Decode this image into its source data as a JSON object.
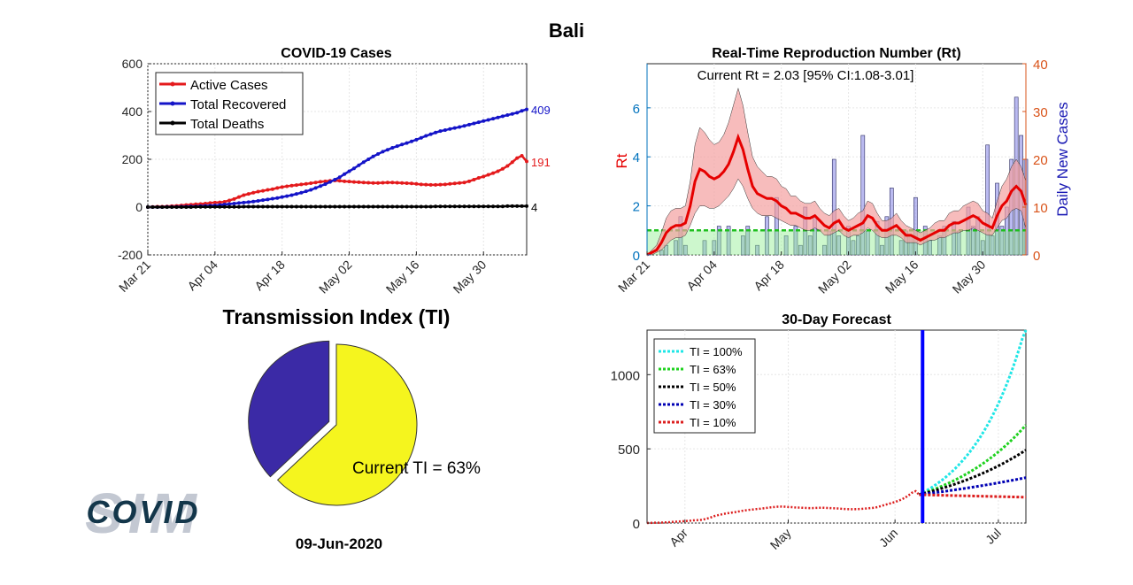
{
  "page": {
    "title": "Bali",
    "date": "09-Jun-2020",
    "logo_text": "COVID",
    "logo_watermark": "SIM"
  },
  "colors": {
    "active": "#e41a1c",
    "recovered": "#1414c8",
    "deaths": "#000000",
    "rt_line": "#e60000",
    "rt_band": "#f4a0a0",
    "rt_axis": "#0072bd",
    "cases_axis": "#d95319",
    "cases_label": "#1a1ab4",
    "bars": "#8c8ce6",
    "threshold": "#1fbf1f",
    "forecast_line": "#0000ff",
    "pie_yellow": "#f5f51e",
    "pie_purple": "#3b2aa6",
    "tick": "#262626"
  },
  "chart_data": [
    {
      "id": "cases",
      "type": "line",
      "title": "COVID-19 Cases",
      "xlabel": "",
      "ylabel": "",
      "xlim": [
        0,
        79
      ],
      "ylim": [
        -200,
        600
      ],
      "yticks": [
        -200,
        0,
        200,
        400,
        600
      ],
      "xticks": [
        {
          "x": 0,
          "label": "Mar 21"
        },
        {
          "x": 14,
          "label": "Apr 04"
        },
        {
          "x": 28,
          "label": "Apr 18"
        },
        {
          "x": 42,
          "label": "May 02"
        },
        {
          "x": 56,
          "label": "May 16"
        },
        {
          "x": 70,
          "label": "May 30"
        }
      ],
      "grid": true,
      "legend": "top-left",
      "x_note": "x = days since Mar 21, 2020",
      "series": [
        {
          "name": "Active Cases",
          "end_label": "191",
          "values": [
            0,
            1,
            2,
            2,
            3,
            4,
            5,
            7,
            9,
            10,
            12,
            13,
            15,
            17,
            19,
            20,
            22,
            28,
            34,
            42,
            50,
            55,
            60,
            65,
            68,
            72,
            75,
            80,
            84,
            87,
            90,
            92,
            95,
            97,
            100,
            103,
            106,
            108,
            110,
            111,
            110,
            108,
            107,
            105,
            104,
            103,
            102,
            101,
            101,
            102,
            103,
            103,
            102,
            101,
            100,
            99,
            97,
            95,
            94,
            93,
            93,
            94,
            95,
            97,
            99,
            101,
            103,
            108,
            115,
            122,
            128,
            135,
            142,
            150,
            160,
            172,
            188,
            205,
            215,
            191
          ]
        },
        {
          "name": "Total Recovered",
          "end_label": "409",
          "values": [
            0,
            0,
            0,
            0,
            1,
            1,
            1,
            2,
            2,
            3,
            3,
            4,
            5,
            6,
            7,
            9,
            11,
            13,
            15,
            17,
            19,
            21,
            23,
            26,
            29,
            32,
            35,
            38,
            42,
            46,
            50,
            55,
            60,
            66,
            72,
            80,
            88,
            96,
            105,
            115,
            125,
            138,
            150,
            162,
            175,
            188,
            200,
            212,
            222,
            232,
            240,
            248,
            255,
            262,
            268,
            275,
            282,
            290,
            298,
            305,
            312,
            318,
            322,
            327,
            331,
            335,
            340,
            345,
            350,
            355,
            360,
            365,
            370,
            375,
            380,
            385,
            390,
            395,
            403,
            409
          ]
        },
        {
          "name": "Total Deaths",
          "end_label": "4",
          "values": [
            0,
            0,
            0,
            0,
            0,
            0,
            0,
            0,
            0,
            0,
            1,
            1,
            1,
            1,
            1,
            1,
            1,
            1,
            1,
            1,
            2,
            2,
            2,
            2,
            2,
            2,
            2,
            2,
            2,
            2,
            2,
            2,
            2,
            2,
            2,
            2,
            2,
            2,
            2,
            2,
            2,
            2,
            2,
            2,
            2,
            2,
            2,
            2,
            2,
            2,
            2,
            2,
            2,
            2,
            2,
            2,
            2,
            2,
            2,
            2,
            3,
            3,
            3,
            3,
            3,
            3,
            3,
            3,
            3,
            3,
            3,
            3,
            3,
            3,
            3,
            4,
            4,
            4,
            4,
            4
          ]
        }
      ]
    },
    {
      "id": "rt",
      "type": "line",
      "title": "Real-Time Reproduction Number (Rt)",
      "annotation": "Current Rt = 2.03 [95% CI:1.08-3.01]",
      "xlabel": "",
      "ylabel_left": "Rt",
      "ylabel_right": "Daily New Cases",
      "xlim": [
        0,
        79
      ],
      "ylim_left": [
        0,
        7.8
      ],
      "yticks_left": [
        0,
        2,
        4,
        6
      ],
      "ylim_right": [
        0,
        40
      ],
      "yticks_right": [
        0,
        10,
        20,
        30,
        40
      ],
      "xticks": [
        {
          "x": 0,
          "label": "Mar 21"
        },
        {
          "x": 14,
          "label": "Apr 04"
        },
        {
          "x": 28,
          "label": "Apr 18"
        },
        {
          "x": 42,
          "label": "May 02"
        },
        {
          "x": 56,
          "label": "May 16"
        },
        {
          "x": 70,
          "label": "May 30"
        }
      ],
      "threshold": 1,
      "rt": [
        0,
        0.1,
        0.2,
        0.5,
        0.9,
        1.1,
        1.2,
        1.2,
        1.3,
        2.0,
        3.0,
        3.5,
        3.4,
        3.2,
        3.1,
        3.2,
        3.4,
        3.7,
        4.2,
        4.8,
        4.3,
        3.5,
        2.8,
        2.5,
        2.4,
        2.3,
        2.3,
        2.2,
        2.0,
        1.9,
        1.7,
        1.7,
        1.6,
        1.5,
        1.5,
        1.6,
        1.4,
        1.2,
        1.1,
        1.3,
        1.4,
        1.1,
        1.0,
        1.1,
        1.2,
        1.3,
        1.6,
        1.5,
        1.2,
        1.0,
        1.0,
        1.1,
        1.2,
        1.0,
        0.8,
        0.8,
        0.7,
        0.6,
        0.7,
        0.8,
        0.9,
        1.0,
        1.0,
        1.2,
        1.3,
        1.3,
        1.4,
        1.5,
        1.6,
        1.5,
        1.3,
        1.2,
        1.1,
        1.6,
        2.0,
        2.2,
        2.6,
        2.8,
        2.6,
        2.03
      ],
      "rt_low": [
        0,
        0,
        0.1,
        0.2,
        0.4,
        0.6,
        0.7,
        0.7,
        0.8,
        1.2,
        1.7,
        2.0,
        2.0,
        1.9,
        1.9,
        2.0,
        2.2,
        2.4,
        2.7,
        3.1,
        2.8,
        2.3,
        1.9,
        1.7,
        1.6,
        1.6,
        1.6,
        1.5,
        1.4,
        1.3,
        1.2,
        1.2,
        1.1,
        1.0,
        1.0,
        1.1,
        1.0,
        0.8,
        0.8,
        0.9,
        1.0,
        0.8,
        0.7,
        0.8,
        0.8,
        0.9,
        1.1,
        1.0,
        0.8,
        0.7,
        0.7,
        0.8,
        0.8,
        0.7,
        0.5,
        0.5,
        0.5,
        0.4,
        0.5,
        0.6,
        0.6,
        0.7,
        0.7,
        0.8,
        0.9,
        0.9,
        1.0,
        1.0,
        1.1,
        1.0,
        0.9,
        0.8,
        0.8,
        1.1,
        1.4,
        1.5,
        1.8,
        1.9,
        1.8,
        1.08
      ],
      "rt_high": [
        0,
        0.2,
        0.4,
        0.9,
        1.5,
        1.8,
        1.9,
        1.9,
        2.0,
        3.0,
        4.5,
        5.2,
        5.0,
        4.7,
        4.5,
        4.6,
        4.9,
        5.4,
        6.1,
        6.8,
        6.1,
        5.0,
        4.0,
        3.6,
        3.4,
        3.2,
        3.2,
        3.1,
        2.8,
        2.7,
        2.4,
        2.4,
        2.2,
        2.1,
        2.1,
        2.2,
        1.9,
        1.7,
        1.6,
        1.8,
        1.9,
        1.6,
        1.4,
        1.5,
        1.7,
        1.8,
        2.2,
        2.1,
        1.7,
        1.4,
        1.4,
        1.5,
        1.7,
        1.4,
        1.2,
        1.1,
        1.0,
        0.9,
        1.0,
        1.1,
        1.3,
        1.4,
        1.4,
        1.7,
        1.8,
        1.8,
        2.0,
        2.1,
        2.2,
        2.1,
        1.8,
        1.7,
        1.5,
        2.2,
        2.8,
        3.1,
        3.6,
        3.9,
        3.6,
        3.01
      ],
      "daily_new_cases": [
        0,
        0,
        0,
        1,
        2,
        0,
        3,
        8,
        2,
        0,
        0,
        0,
        3,
        0,
        3,
        6,
        0,
        6,
        0,
        0,
        4,
        6,
        0,
        2,
        0,
        8,
        0,
        12,
        0,
        4,
        0,
        6,
        2,
        10,
        4,
        8,
        0,
        2,
        5,
        20,
        4,
        0,
        6,
        3,
        4,
        25,
        5,
        0,
        7,
        2,
        8,
        14,
        0,
        3,
        5,
        4,
        12,
        0,
        6,
        3,
        0,
        4,
        6,
        0,
        7,
        5,
        0,
        10,
        6,
        8,
        3,
        23,
        4,
        15,
        6,
        10,
        20,
        33,
        25,
        20
      ]
    },
    {
      "id": "forecast",
      "type": "line",
      "title": "30-Day Forecast",
      "xlabel": "",
      "ylabel": "",
      "xlim": [
        0,
        110
      ],
      "ylim": [
        0,
        1300
      ],
      "yticks": [
        0,
        500,
        1000
      ],
      "xticks": [
        {
          "x": 11,
          "label": "Apr"
        },
        {
          "x": 41,
          "label": "May"
        },
        {
          "x": 72,
          "label": "Jun"
        },
        {
          "x": 102,
          "label": "Jul"
        }
      ],
      "x_note": "x = days since Mar 21, 2020",
      "current_day": 80,
      "legend": "top-left",
      "history_end": 80,
      "series": [
        {
          "name": "TI = 100%",
          "color": "#1fe6e6",
          "growth": 0.0625
        },
        {
          "name": "TI = 63%",
          "color": "#1fd21f",
          "growth": 0.04
        },
        {
          "name": "TI = 50%",
          "color": "#000000",
          "growth": 0.0305
        },
        {
          "name": "TI = 30%",
          "color": "#0000b4",
          "growth": 0.0152
        },
        {
          "name": "TI = 10%",
          "color": "#dc1e1e",
          "growth": -0.003
        }
      ]
    },
    {
      "id": "ti",
      "type": "pie",
      "title": "Transmission Index (TI)",
      "label": "Current TI = 63%",
      "values": [
        63,
        37
      ],
      "colors": [
        "#f5f51e",
        "#3b2aa6"
      ],
      "exploded": 0
    }
  ]
}
